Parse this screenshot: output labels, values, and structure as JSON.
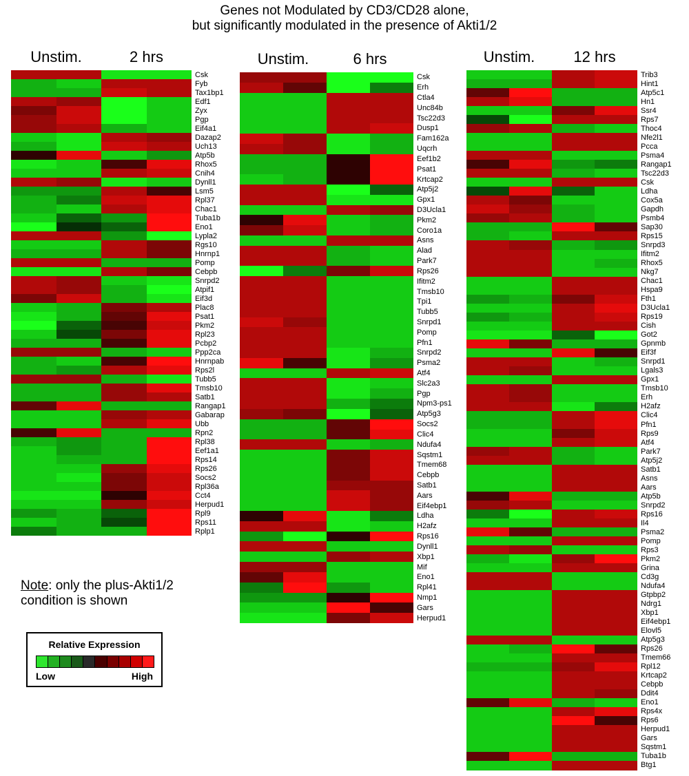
{
  "title_line1": "Genes not Modulated by CD3/CD28 alone,",
  "title_line2": "but significantly modulated in the presence of Akti1/2",
  "note_label": "Note",
  "note_text": ": only the plus-Akti1/2",
  "note_text2": "condition is shown",
  "legend": {
    "title": "Relative Expression",
    "low": "Low",
    "high": "High",
    "colors": [
      "#2ee62e",
      "#22b022",
      "#1e8a1e",
      "#1a5a1a",
      "#2a2a2a",
      "#4a0000",
      "#7a0000",
      "#a80000",
      "#d00000",
      "#ff1a1a"
    ]
  },
  "chart_data": [
    {
      "type": "heatmap",
      "columns": [
        "Unstim.",
        "2 hrs"
      ],
      "genes": [
        "Csk",
        "Fyb",
        "Tax1bp1",
        "Edf1",
        "Zyx",
        "Pgp",
        "Eif4a1",
        "Dazap2",
        "Uch13",
        "Atp5b",
        "Rhox5",
        "Cnih4",
        "Dynll1",
        "Lsm5",
        "Rpl37",
        "Chac1",
        "Tuba1b",
        "Eno1",
        "Lypla2",
        "Rgs10",
        "Hnrnp1",
        "Pomp",
        "Cebpb",
        "Snrpd2",
        "Atpif1",
        "Eif3d",
        "Plac8",
        "Psat1",
        "Pkm2",
        "Rpl23",
        "Pcbp2",
        "Ppp2ca",
        "Hnrnpab",
        "Rps2l",
        "Tubb5",
        "Tmsb10",
        "Satb1",
        "Rangap1",
        "Gabarap",
        "Ubb",
        "Rpn2",
        "Rpl38",
        "Eef1a1",
        "Rps14",
        "Rps26",
        "Socs2",
        "Rpl36a",
        "Cct4",
        "Herpud1",
        "Rpl9",
        "Rps11",
        "Rplp1"
      ],
      "values": [
        [
          6,
          6,
          -8,
          -8
        ],
        [
          -6,
          -7,
          6,
          6
        ],
        [
          -6,
          -6,
          7,
          6
        ],
        [
          6,
          5,
          -9,
          -7
        ],
        [
          4,
          7,
          -9,
          -7
        ],
        [
          5,
          7,
          -9,
          -7
        ],
        [
          5,
          6,
          -6,
          -7
        ],
        [
          -7,
          -8,
          6,
          5
        ],
        [
          -6,
          -8,
          7,
          6
        ],
        [
          1,
          8,
          -7,
          -5
        ],
        [
          -8,
          -7,
          2,
          8
        ],
        [
          -7,
          -7,
          6,
          7
        ],
        [
          6,
          5,
          -8,
          -7
        ],
        [
          -5,
          -5,
          6,
          2
        ],
        [
          -6,
          -4,
          7,
          8
        ],
        [
          -6,
          -7,
          6,
          8
        ],
        [
          -7,
          -3,
          -5,
          9
        ],
        [
          -9,
          -1,
          -3,
          9
        ],
        [
          6,
          6,
          -5,
          -9
        ],
        [
          -7,
          -7,
          6,
          4
        ],
        [
          -6,
          -6,
          6,
          4
        ],
        [
          6,
          6,
          -6,
          -6
        ],
        [
          -8,
          -8,
          6,
          4
        ],
        [
          6,
          5,
          -7,
          -8
        ],
        [
          6,
          5,
          -6,
          -9
        ],
        [
          4,
          7,
          -6,
          -8
        ],
        [
          -7,
          -6,
          4,
          6
        ],
        [
          -8,
          -6,
          3,
          8
        ],
        [
          -9,
          -3,
          2,
          7
        ],
        [
          -7,
          -2,
          4,
          8
        ],
        [
          -6,
          -6,
          2,
          8
        ],
        [
          5,
          5,
          -6,
          -7
        ],
        [
          -6,
          -7,
          2,
          9
        ],
        [
          -6,
          -5,
          6,
          8
        ],
        [
          5,
          5,
          -6,
          -8
        ],
        [
          -6,
          -6,
          5,
          8
        ],
        [
          -6,
          -6,
          5,
          6
        ],
        [
          3,
          8,
          -6,
          -6
        ],
        [
          -7,
          -7,
          5,
          6
        ],
        [
          -7,
          -7,
          6,
          8
        ],
        [
          2,
          8,
          -6,
          -6
        ],
        [
          -6,
          -5,
          -6,
          9
        ],
        [
          -7,
          -5,
          -6,
          9
        ],
        [
          -7,
          -6,
          -6,
          9
        ],
        [
          -7,
          -7,
          5,
          8
        ],
        [
          -7,
          -8,
          4,
          7
        ],
        [
          -7,
          -7,
          4,
          7
        ],
        [
          -8,
          -8,
          1,
          8
        ],
        [
          -7,
          -7,
          5,
          7
        ],
        [
          -5,
          -6,
          -3,
          9
        ],
        [
          -7,
          -6,
          -2,
          9
        ],
        [
          -4,
          -6,
          -6,
          9
        ]
      ]
    },
    {
      "type": "heatmap",
      "columns": [
        "Unstim.",
        "6 hrs"
      ],
      "genes": [
        "Csk",
        "Erh",
        "Ctla4",
        "Unc84b",
        "Tsc22d3",
        "Dusp1",
        "Fam162a",
        "Uqcrh",
        "Eef1b2",
        "Psat1",
        "Krtcap2",
        "Atp5j2",
        "Gpx1",
        "D3Ucla1",
        "Pkm2",
        "Coro1a",
        "Asns",
        "Alad",
        "Park7",
        "Rps26",
        "Ifitm2",
        "Tmsb10",
        "Tpi1",
        "Tubb5",
        "Snrpd1",
        "Pomp",
        "Pfn1",
        "Snrpd2",
        "Psma2",
        "Atf4",
        "Slc2a3",
        "Pgp",
        "Npm3-ps1",
        "Atp5g3",
        "Socs2",
        "Clic4",
        "Ndufa4",
        "Sqstm1",
        "Tmem68",
        "Cebpb",
        "Satb1",
        "Aars",
        "Eif4ebp1",
        "Ldha",
        "H2afz",
        "Rps16",
        "Dynll1",
        "Xbp1",
        "Mif",
        "Eno1",
        "Rpl41",
        "Nmp1",
        "Gars",
        "Herpud1"
      ],
      "values": [
        [
          5,
          5,
          -9,
          -9
        ],
        [
          6,
          3,
          -9,
          -4
        ],
        [
          -7,
          -7,
          6,
          6
        ],
        [
          -7,
          -7,
          6,
          6
        ],
        [
          -7,
          -7,
          6,
          6
        ],
        [
          -7,
          -7,
          6,
          7
        ],
        [
          7,
          5,
          -8,
          -6
        ],
        [
          6,
          5,
          -8,
          -6
        ],
        [
          -6,
          -6,
          1,
          9
        ],
        [
          -6,
          -6,
          1,
          9
        ],
        [
          -7,
          -6,
          1,
          9
        ],
        [
          6,
          6,
          -9,
          -3
        ],
        [
          6,
          6,
          -8,
          -8
        ],
        [
          -7,
          -7,
          6,
          5
        ],
        [
          1,
          8,
          -7,
          -6
        ],
        [
          4,
          7,
          -7,
          -6
        ],
        [
          -7,
          -7,
          6,
          6
        ],
        [
          6,
          6,
          -6,
          -7
        ],
        [
          6,
          6,
          -6,
          -7
        ],
        [
          -9,
          -4,
          4,
          7
        ],
        [
          6,
          6,
          -7,
          -7
        ],
        [
          6,
          6,
          -7,
          -7
        ],
        [
          6,
          6,
          -7,
          -7
        ],
        [
          6,
          6,
          -7,
          -7
        ],
        [
          7,
          5,
          -7,
          -7
        ],
        [
          6,
          6,
          -7,
          -7
        ],
        [
          6,
          6,
          -7,
          -7
        ],
        [
          6,
          6,
          -8,
          -6
        ],
        [
          8,
          2,
          -8,
          -5
        ],
        [
          -7,
          -7,
          6,
          7
        ],
        [
          6,
          6,
          -8,
          -7
        ],
        [
          6,
          6,
          -8,
          -6
        ],
        [
          6,
          6,
          -6,
          -4
        ],
        [
          5,
          4,
          -9,
          -3
        ],
        [
          -6,
          -6,
          3,
          9
        ],
        [
          -6,
          -6,
          3,
          8
        ],
        [
          6,
          6,
          -7,
          -6
        ],
        [
          -7,
          -7,
          4,
          7
        ],
        [
          -7,
          -7,
          4,
          7
        ],
        [
          -7,
          -7,
          4,
          7
        ],
        [
          -7,
          -7,
          5,
          5
        ],
        [
          -7,
          -7,
          7,
          5
        ],
        [
          -7,
          -7,
          7,
          5
        ],
        [
          1,
          8,
          -8,
          -4
        ],
        [
          6,
          6,
          -8,
          -7
        ],
        [
          -5,
          -9,
          1,
          9
        ],
        [
          6,
          6,
          -7,
          -7
        ],
        [
          -7,
          -7,
          5,
          6
        ],
        [
          5,
          5,
          -7,
          -7
        ],
        [
          3,
          8,
          -7,
          -7
        ],
        [
          -4,
          9,
          -5,
          -7
        ],
        [
          -5,
          -5,
          1,
          9
        ],
        [
          -7,
          -7,
          9,
          2
        ],
        [
          -8,
          -8,
          4,
          7
        ]
      ]
    },
    {
      "type": "heatmap",
      "columns": [
        "Unstim.",
        "12 hrs"
      ],
      "genes": [
        "Trib3",
        "Hint1",
        "Atp5c1",
        "Hn1",
        "Ssr4",
        "Rps7",
        "Thoc4",
        "Nfe2l1",
        "Pcca",
        "Psma4",
        "Rangap1",
        "Tsc22d3",
        "Csk",
        "Ldha",
        "Cox5a",
        "Gapdh",
        "Psmb4",
        "Sap30",
        "Rps15",
        "Snrpd3",
        "Ifitm2",
        "Rhox5",
        "Nkg7",
        "Chac1",
        "Hspa9",
        "Fth1",
        "D3Ucla1",
        "Rps19",
        "Cish",
        "Got2",
        "Gpnmb",
        "Eif3f",
        "Snrpd1",
        "Lgals3",
        "Gpx1",
        "Tmsb10",
        "Erh",
        "H2afz",
        "Clic4",
        "Pfn1",
        "Rps9",
        "Atf4",
        "Park7",
        "Atp5j2",
        "Satb1",
        "Asns",
        "Aars",
        "Atp5b",
        "Snrpd2",
        "Rps16",
        "Il4",
        "Psma2",
        "Pomp",
        "Rps3",
        "Pkm2",
        "Grina",
        "Cd3g",
        "Ndufa4",
        "Gtpbp2",
        "Ndrg1",
        "Xbp1",
        "Eif4ebp1",
        "Elovl5",
        "Atp5g3",
        "Rps26",
        "Tmem66",
        "Rpl12",
        "Krtcap2",
        "Cebpb",
        "Ddit4",
        "Eno1",
        "Rps4x",
        "Rps6",
        "Herpud1",
        "Gars",
        "Sqstm1",
        "Tuba1b",
        "Btg1"
      ],
      "values": [
        [
          -7,
          -7,
          6,
          7
        ],
        [
          -6,
          -6,
          6,
          7
        ],
        [
          3,
          9,
          -6,
          -6
        ],
        [
          6,
          8,
          -6,
          -6
        ],
        [
          -7,
          -7,
          4,
          8
        ],
        [
          -2,
          -9,
          6,
          6
        ],
        [
          5,
          6,
          -6,
          -7
        ],
        [
          -7,
          -7,
          6,
          6
        ],
        [
          -7,
          -7,
          6,
          6
        ],
        [
          6,
          6,
          -7,
          -7
        ],
        [
          2,
          8,
          -5,
          -4
        ],
        [
          6,
          6,
          -6,
          -7
        ],
        [
          -7,
          -7,
          6,
          6
        ],
        [
          -2,
          8,
          -3,
          -7
        ],
        [
          6,
          4,
          -7,
          -7
        ],
        [
          7,
          5,
          -6,
          -7
        ],
        [
          5,
          6,
          -6,
          -7
        ],
        [
          -6,
          -6,
          9,
          3
        ],
        [
          -6,
          -7,
          6,
          6
        ],
        [
          6,
          5,
          -6,
          -5
        ],
        [
          6,
          6,
          -7,
          -7
        ],
        [
          6,
          6,
          -7,
          -6
        ],
        [
          6,
          6,
          -7,
          -7
        ],
        [
          -7,
          -7,
          6,
          6
        ],
        [
          -7,
          -7,
          6,
          6
        ],
        [
          -5,
          -6,
          4,
          7
        ],
        [
          -7,
          -7,
          6,
          8
        ],
        [
          -5,
          -6,
          6,
          7
        ],
        [
          -7,
          -7,
          6,
          6
        ],
        [
          -8,
          -8,
          -3,
          -9
        ],
        [
          8,
          4,
          -6,
          -6
        ],
        [
          -7,
          -7,
          8,
          2
        ],
        [
          6,
          6,
          -7,
          -6
        ],
        [
          6,
          5,
          -7,
          -7
        ],
        [
          -7,
          -7,
          6,
          6
        ],
        [
          6,
          5,
          -7,
          -7
        ],
        [
          6,
          5,
          -7,
          -7
        ],
        [
          6,
          6,
          -8,
          -4
        ],
        [
          -6,
          -6,
          6,
          8
        ],
        [
          -6,
          -6,
          6,
          8
        ],
        [
          -7,
          -7,
          4,
          7
        ],
        [
          -7,
          -7,
          6,
          7
        ],
        [
          5,
          6,
          -6,
          -7
        ],
        [
          6,
          6,
          -6,
          -7
        ],
        [
          -7,
          -7,
          6,
          6
        ],
        [
          -7,
          -7,
          6,
          6
        ],
        [
          -7,
          -7,
          6,
          6
        ],
        [
          2,
          8,
          -6,
          -6
        ],
        [
          5,
          6,
          -7,
          -7
        ],
        [
          -4,
          -9,
          6,
          7
        ],
        [
          -7,
          -7,
          6,
          6
        ],
        [
          8,
          3,
          -6,
          -6
        ],
        [
          -7,
          -7,
          6,
          6
        ],
        [
          6,
          5,
          -7,
          -7
        ],
        [
          -6,
          -8,
          5,
          9
        ],
        [
          -7,
          -7,
          6,
          6
        ],
        [
          6,
          6,
          -7,
          -7
        ],
        [
          6,
          6,
          -7,
          -7
        ],
        [
          -7,
          -7,
          6,
          6
        ],
        [
          -7,
          -7,
          6,
          6
        ],
        [
          -7,
          -7,
          6,
          6
        ],
        [
          -7,
          -7,
          6,
          6
        ],
        [
          -7,
          -7,
          6,
          6
        ],
        [
          6,
          6,
          -7,
          -7
        ],
        [
          -7,
          -6,
          9,
          3
        ],
        [
          -7,
          -7,
          6,
          6
        ],
        [
          -6,
          -6,
          5,
          8
        ],
        [
          -7,
          -7,
          6,
          6
        ],
        [
          -7,
          -7,
          6,
          6
        ],
        [
          -7,
          -7,
          6,
          5
        ],
        [
          3,
          8,
          -6,
          -7
        ],
        [
          -7,
          -7,
          6,
          8
        ],
        [
          -7,
          -7,
          9,
          2
        ],
        [
          -7,
          -7,
          6,
          6
        ],
        [
          -7,
          -7,
          6,
          6
        ],
        [
          -7,
          -7,
          6,
          6
        ],
        [
          3,
          9,
          -6,
          -6
        ],
        [
          -7,
          -7,
          6,
          6
        ]
      ]
    }
  ]
}
